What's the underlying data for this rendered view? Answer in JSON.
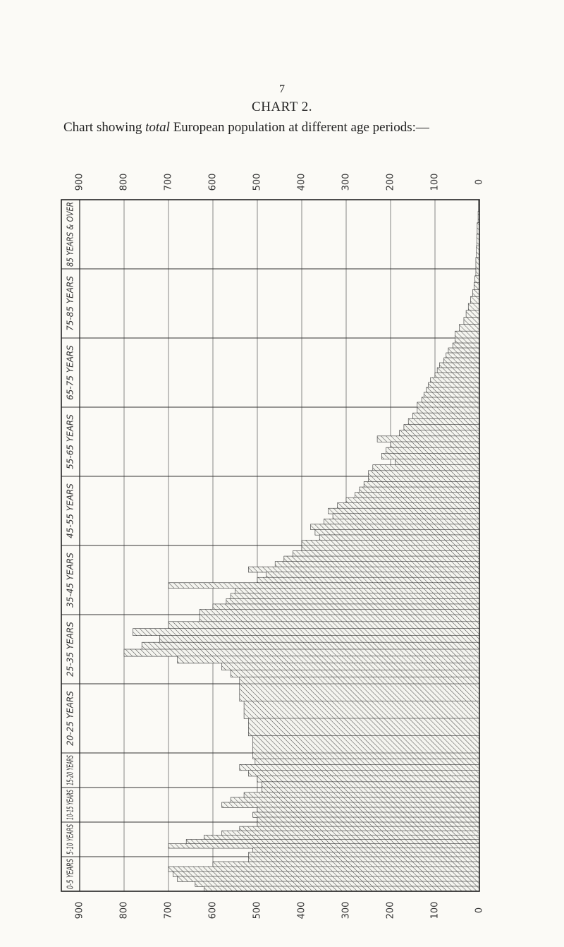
{
  "page": {
    "number": "7"
  },
  "header": {
    "title": "CHART 2.",
    "caption_pre": "Chart showing",
    "caption_em": "total",
    "caption_post": "European population at different age periods:—"
  },
  "chart_data": {
    "type": "bar",
    "orientation": "horizontal",
    "bar_direction": "right-to-left",
    "title": "CHART 2.",
    "xlim": [
      0,
      900
    ],
    "x_ticks": [
      "900",
      "800",
      "700",
      "600",
      "500",
      "400",
      "300",
      "200",
      "100",
      "0"
    ],
    "grid": true,
    "fill": "diagonal hatching",
    "categories": [
      "85 YEARS & OVER",
      "75-85 YEARS",
      "65-75 YEARS",
      "55-65 YEARS",
      "45-55 YEARS",
      "35-45 YEARS",
      "25-35 YEARS",
      "20-25 YEARS",
      "15-20 YEARS",
      "10-15 YEARS",
      "5-10 YEARS",
      "0-5 YEARS"
    ],
    "bars": [
      {
        "category": "85 YEARS & OVER",
        "steps": [
          2,
          3,
          5,
          6,
          7,
          8
        ]
      },
      {
        "category": "75-85 YEARS",
        "steps": [
          8,
          10,
          12,
          15,
          20,
          25,
          30,
          35,
          45,
          55
        ]
      },
      {
        "category": "65-75 YEARS",
        "steps": [
          55,
          60,
          70,
          75,
          80,
          90,
          95,
          100,
          110,
          115,
          120,
          125,
          130,
          140
        ]
      },
      {
        "category": "55-65 YEARS",
        "steps": [
          140,
          150,
          160,
          170,
          180,
          230,
          200,
          210,
          220,
          190,
          240,
          250
        ]
      },
      {
        "category": "45-55 YEARS",
        "steps": [
          250,
          260,
          270,
          280,
          300,
          320,
          340,
          330,
          350,
          380,
          370,
          360,
          400
        ]
      },
      {
        "category": "35-45 YEARS",
        "steps": [
          400,
          420,
          440,
          460,
          520,
          480,
          500,
          700,
          550,
          560,
          570,
          600,
          630
        ]
      },
      {
        "category": "25-35 YEARS",
        "steps": [
          630,
          700,
          780,
          720,
          760,
          800,
          680,
          580,
          560,
          540
        ]
      },
      {
        "category": "20-25 YEARS",
        "steps": [
          540,
          530,
          520,
          510
        ]
      },
      {
        "category": "15-20 YEARS",
        "steps": [
          510,
          505,
          540,
          520,
          500,
          490
        ]
      },
      {
        "category": "10-15 YEARS",
        "steps": [
          490,
          530,
          560,
          580,
          500,
          510,
          500
        ]
      },
      {
        "category": "5-10 YEARS",
        "steps": [
          500,
          540,
          580,
          620,
          660,
          700,
          510,
          520
        ]
      },
      {
        "category": "0-5 YEARS",
        "steps": [
          520,
          600,
          700,
          690,
          680,
          640,
          620
        ]
      }
    ]
  }
}
